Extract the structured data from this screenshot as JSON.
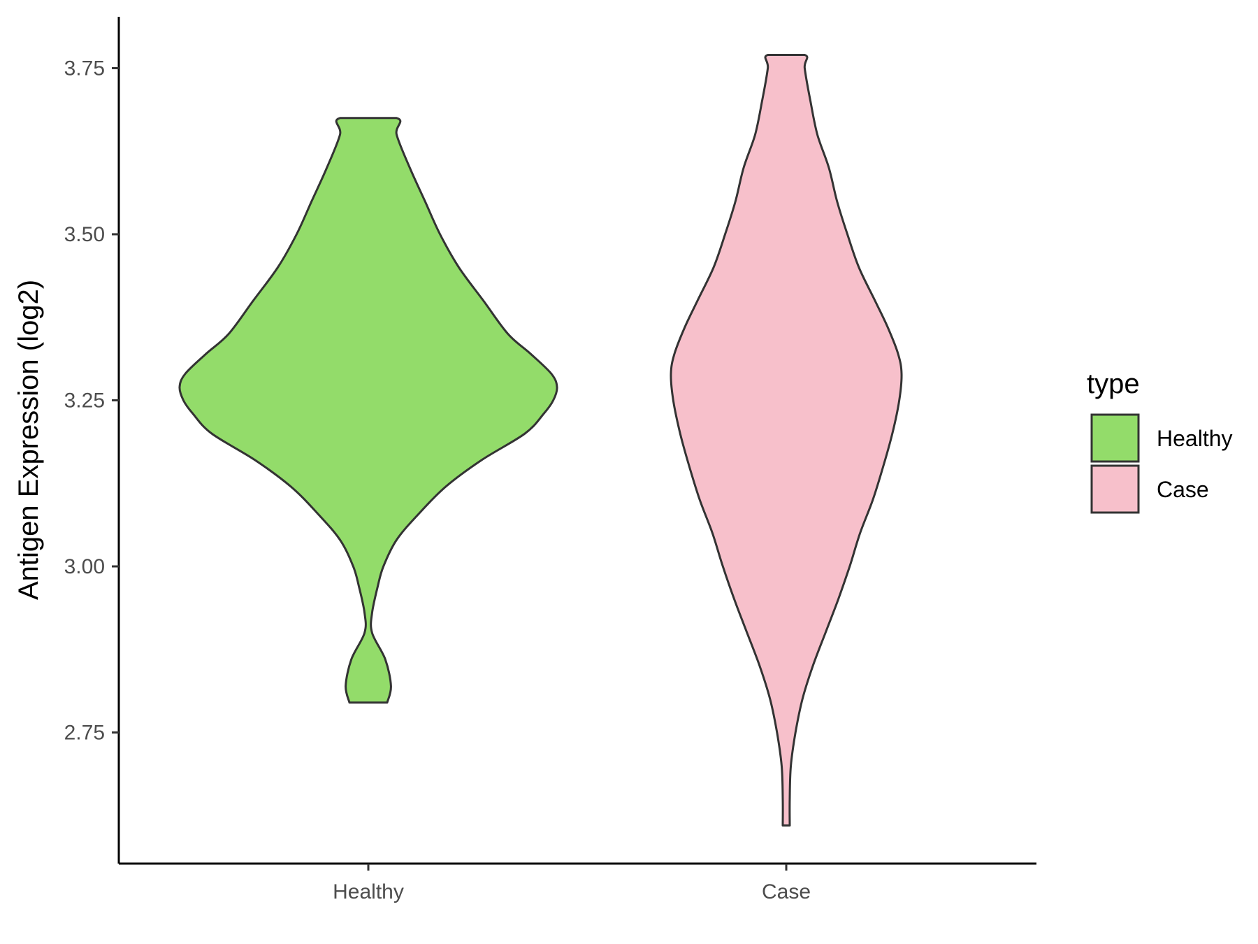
{
  "chart_data": {
    "type": "violin",
    "title": "",
    "xlabel": "",
    "ylabel": "Antigen Expression (log2)",
    "categories": [
      "Healthy",
      "Case"
    ],
    "ylim": [
      2.56,
      3.83
    ],
    "yticks": [
      "2.75",
      "3.00",
      "3.25",
      "3.50",
      "3.75"
    ],
    "grid": false,
    "legend": {
      "title": "type",
      "position": "right",
      "entries": [
        {
          "label": "Healthy",
          "color": "#93DC6A"
        },
        {
          "label": "Case",
          "color": "#F7C0CB"
        }
      ]
    },
    "series": [
      {
        "category": "Healthy",
        "color": "#93DC6A",
        "min": 2.795,
        "max": 3.675,
        "density": [
          [
            2.795,
            0.1
          ],
          [
            2.82,
            0.12
          ],
          [
            2.86,
            0.09
          ],
          [
            2.9,
            0.02
          ],
          [
            2.93,
            0.02
          ],
          [
            2.97,
            0.05
          ],
          [
            3.0,
            0.08
          ],
          [
            3.04,
            0.15
          ],
          [
            3.08,
            0.27
          ],
          [
            3.12,
            0.41
          ],
          [
            3.16,
            0.6
          ],
          [
            3.2,
            0.83
          ],
          [
            3.23,
            0.93
          ],
          [
            3.25,
            0.98
          ],
          [
            3.27,
            1.0
          ],
          [
            3.29,
            0.97
          ],
          [
            3.32,
            0.86
          ],
          [
            3.35,
            0.74
          ],
          [
            3.4,
            0.61
          ],
          [
            3.45,
            0.48
          ],
          [
            3.5,
            0.38
          ],
          [
            3.55,
            0.3
          ],
          [
            3.6,
            0.22
          ],
          [
            3.65,
            0.15
          ],
          [
            3.675,
            0.15
          ]
        ]
      },
      {
        "category": "Case",
        "color": "#F7C0CB",
        "min": 2.61,
        "max": 3.77,
        "density": [
          [
            2.61,
            0.03
          ],
          [
            2.65,
            0.03
          ],
          [
            2.7,
            0.04
          ],
          [
            2.75,
            0.08
          ],
          [
            2.8,
            0.14
          ],
          [
            2.85,
            0.23
          ],
          [
            2.9,
            0.34
          ],
          [
            2.95,
            0.45
          ],
          [
            3.0,
            0.55
          ],
          [
            3.05,
            0.64
          ],
          [
            3.1,
            0.75
          ],
          [
            3.15,
            0.84
          ],
          [
            3.2,
            0.92
          ],
          [
            3.25,
            0.98
          ],
          [
            3.29,
            1.0
          ],
          [
            3.32,
            0.97
          ],
          [
            3.36,
            0.88
          ],
          [
            3.4,
            0.77
          ],
          [
            3.45,
            0.63
          ],
          [
            3.5,
            0.53
          ],
          [
            3.55,
            0.44
          ],
          [
            3.6,
            0.37
          ],
          [
            3.65,
            0.27
          ],
          [
            3.7,
            0.21
          ],
          [
            3.75,
            0.16
          ],
          [
            3.77,
            0.16
          ]
        ]
      }
    ]
  }
}
